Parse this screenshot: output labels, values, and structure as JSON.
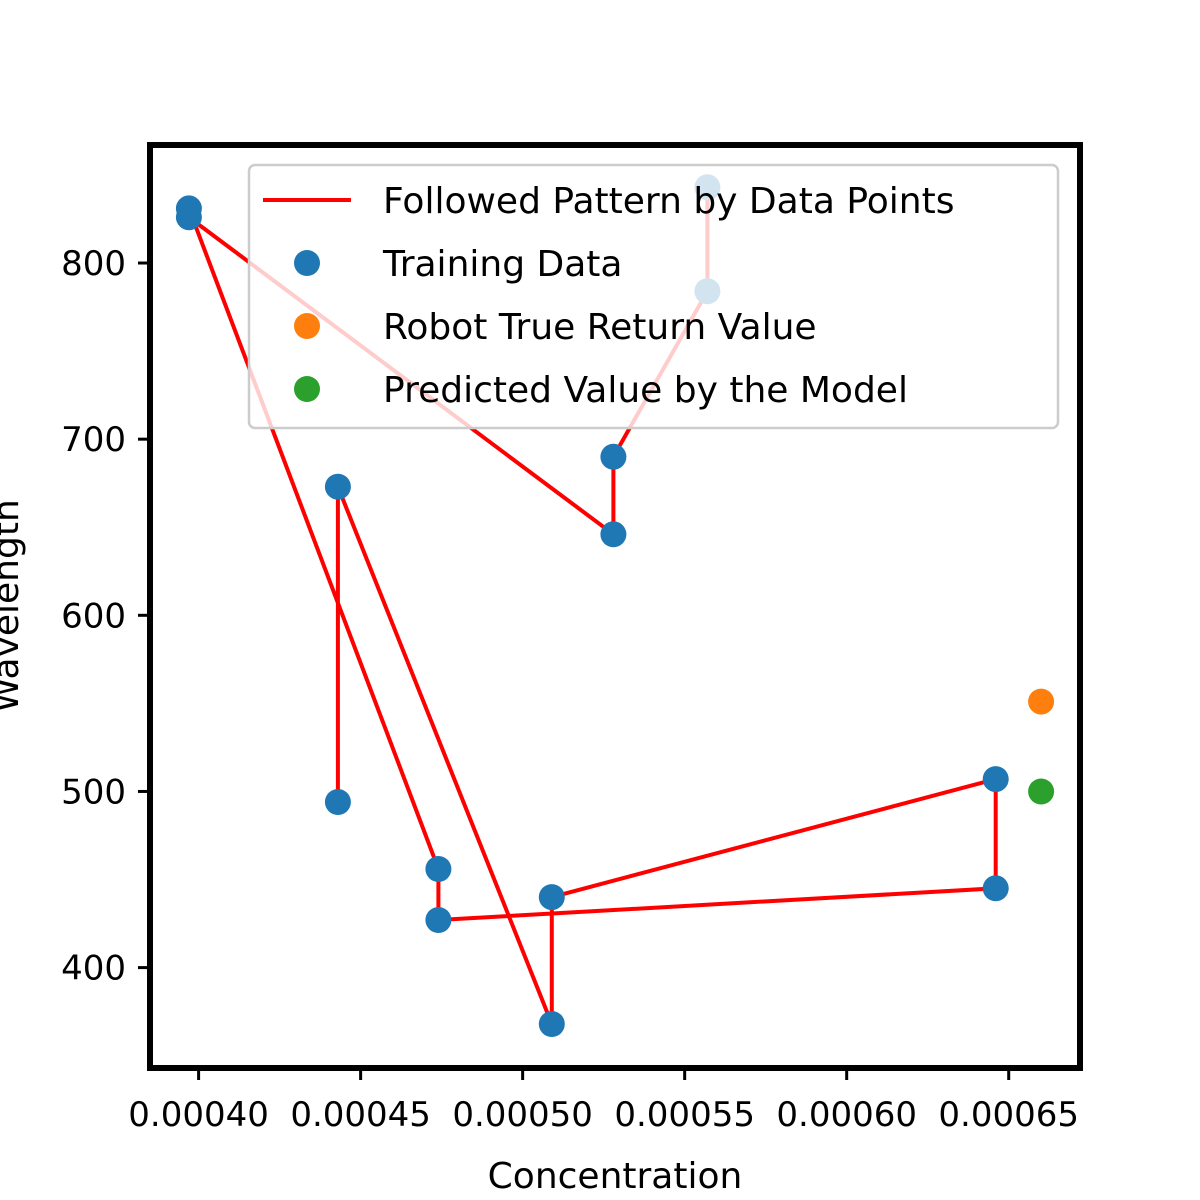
{
  "chart_data": {
    "type": "scatter",
    "title": "",
    "xlabel": "Concentration",
    "ylabel": "Wavelength",
    "xlim": [
      0.000385,
      0.000672
    ],
    "ylim": [
      343,
      867
    ],
    "xticks": [
      0.0004,
      0.00045,
      0.0005,
      0.00055,
      0.0006,
      0.00065
    ],
    "xtick_labels": [
      "0.00040",
      "0.00045",
      "0.00050",
      "0.00055",
      "0.00060",
      "0.00065"
    ],
    "yticks": [
      400,
      500,
      600,
      700,
      800
    ],
    "ytick_labels": [
      "400",
      "500",
      "600",
      "700",
      "800"
    ],
    "grid": false,
    "legend_position": "top-right",
    "series": [
      {
        "name": "Followed Pattern by Data Points",
        "kind": "line",
        "color": "#ff0000",
        "x": [
          0.000557,
          0.000557,
          0.000528,
          0.000528,
          0.000397,
          0.000397,
          0.000474,
          0.000474,
          0.000646,
          0.000646,
          0.000509,
          0.000509,
          0.000443,
          0.000443
        ],
        "y": [
          843,
          784,
          690,
          646,
          826,
          831,
          456,
          427,
          445,
          507,
          440,
          368,
          673,
          494
        ]
      },
      {
        "name": "Training Data",
        "kind": "scatter",
        "color": "#1f77b4",
        "x": [
          0.000397,
          0.000397,
          0.000443,
          0.000443,
          0.000474,
          0.000474,
          0.000509,
          0.000509,
          0.000528,
          0.000528,
          0.000557,
          0.000557,
          0.000646,
          0.000646
        ],
        "y": [
          831,
          826,
          673,
          494,
          456,
          427,
          440,
          368,
          690,
          646,
          843,
          784,
          507,
          445
        ]
      },
      {
        "name": "Robot True Return Value",
        "kind": "scatter",
        "color": "#ff7f0e",
        "x": [
          0.00066
        ],
        "y": [
          551
        ]
      },
      {
        "name": "Predicted Value by the Model",
        "kind": "scatter",
        "color": "#2ca02c",
        "x": [
          0.00066
        ],
        "y": [
          500
        ]
      }
    ]
  }
}
